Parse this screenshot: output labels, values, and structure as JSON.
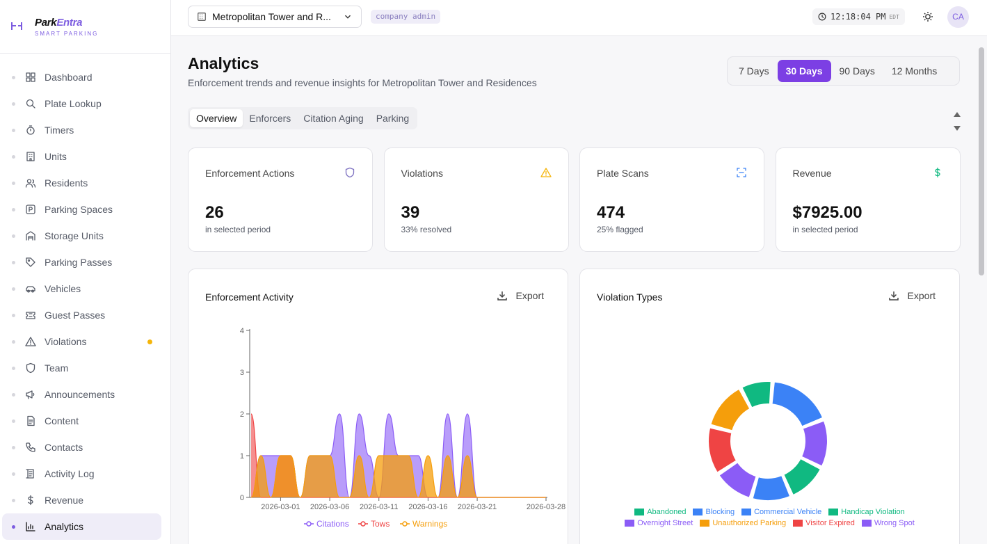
{
  "brand": {
    "name_part1": "Park",
    "name_part2": "Entra",
    "subtitle": "SMART PARKING"
  },
  "sidebar": {
    "items": [
      {
        "label": "Dashboard",
        "icon": "grid-icon"
      },
      {
        "label": "Plate Lookup",
        "icon": "search-icon"
      },
      {
        "label": "Timers",
        "icon": "timer-icon"
      },
      {
        "label": "Units",
        "icon": "building-icon"
      },
      {
        "label": "Residents",
        "icon": "users-icon"
      },
      {
        "label": "Parking Spaces",
        "icon": "parking-icon"
      },
      {
        "label": "Storage Units",
        "icon": "warehouse-icon"
      },
      {
        "label": "Parking Passes",
        "icon": "tag-icon"
      },
      {
        "label": "Vehicles",
        "icon": "car-icon"
      },
      {
        "label": "Guest Passes",
        "icon": "ticket-icon"
      },
      {
        "label": "Violations",
        "icon": "warning-icon"
      },
      {
        "label": "Team",
        "icon": "shield-icon"
      },
      {
        "label": "Announcements",
        "icon": "megaphone-icon"
      },
      {
        "label": "Content",
        "icon": "document-icon"
      },
      {
        "label": "Contacts",
        "icon": "phone-icon"
      },
      {
        "label": "Activity Log",
        "icon": "log-icon"
      },
      {
        "label": "Revenue",
        "icon": "dollar-icon"
      },
      {
        "label": "Analytics",
        "icon": "bar-chart-icon"
      }
    ],
    "active_index": 17,
    "alert_index": 10
  },
  "header": {
    "property": "Metropolitan Tower and R...",
    "role": "company admin",
    "time": "12:18:04 PM",
    "timezone": "EDT",
    "avatar_initials": "CA"
  },
  "page": {
    "title": "Analytics",
    "subtitle": "Enforcement trends and revenue insights for Metropolitan Tower and Residences",
    "ranges": [
      "7 Days",
      "30 Days",
      "90 Days",
      "12 Months"
    ],
    "active_range": 1,
    "tabs": [
      "Overview",
      "Enforcers",
      "Citation Aging",
      "Parking"
    ],
    "active_tab": 0
  },
  "stats": [
    {
      "title": "Enforcement Actions",
      "value": "26",
      "note": "in selected period",
      "icon": "shield-icon",
      "color": "#7c6fc0"
    },
    {
      "title": "Violations",
      "value": "39",
      "note": "33% resolved",
      "icon": "warning-icon",
      "color": "#f5b50a"
    },
    {
      "title": "Plate Scans",
      "value": "474",
      "note": "25% flagged",
      "icon": "scan-icon",
      "color": "#3b82f6"
    },
    {
      "title": "Revenue",
      "value": "$7925.00",
      "note": "in selected period",
      "icon": "dollar-icon",
      "color": "#10b981"
    }
  ],
  "export_label": "Export",
  "chart_data": [
    {
      "type": "area",
      "title": "Enforcement Activity",
      "x_ticks": [
        "2026-03-01",
        "2026-03-06",
        "2026-03-11",
        "2026-03-16",
        "2026-03-21",
        "2026-03-28"
      ],
      "ylim": [
        0,
        4
      ],
      "y_ticks": [
        "0",
        "1",
        "2",
        "3",
        "4"
      ],
      "x": [
        "2026-02-26",
        "2026-02-27",
        "2026-02-28",
        "2026-03-01",
        "2026-03-02",
        "2026-03-03",
        "2026-03-04",
        "2026-03-05",
        "2026-03-06",
        "2026-03-07",
        "2026-03-08",
        "2026-03-09",
        "2026-03-10",
        "2026-03-11",
        "2026-03-12",
        "2026-03-13",
        "2026-03-14",
        "2026-03-15",
        "2026-03-16",
        "2026-03-17",
        "2026-03-18",
        "2026-03-19",
        "2026-03-20",
        "2026-03-21",
        "2026-03-22",
        "2026-03-23",
        "2026-03-24",
        "2026-03-25",
        "2026-03-26",
        "2026-03-27",
        "2026-03-28"
      ],
      "legend_position": "bottom",
      "series": [
        {
          "name": "Citations",
          "color": "#8b5cf6",
          "values": [
            0,
            1,
            1,
            1,
            1,
            0,
            1,
            1,
            1,
            2,
            0,
            2,
            1,
            0,
            2,
            1,
            1,
            1,
            0,
            0,
            2,
            0,
            2,
            0,
            0,
            0,
            0,
            0,
            0,
            0,
            0
          ]
        },
        {
          "name": "Tows",
          "color": "#ef4444",
          "values": [
            2,
            0,
            0,
            1,
            1,
            0,
            0,
            0,
            0,
            0,
            0,
            0,
            0,
            0,
            0,
            0,
            0,
            0,
            0,
            0,
            0,
            0,
            0,
            0,
            0,
            0,
            0,
            0,
            0,
            0,
            0
          ]
        },
        {
          "name": "Warnings",
          "color": "#f59e0b",
          "values": [
            0,
            1,
            0,
            1,
            1,
            0,
            1,
            1,
            1,
            0,
            0,
            1,
            0,
            1,
            1,
            1,
            1,
            0,
            1,
            0,
            1,
            0,
            1,
            0,
            0,
            0,
            0,
            0,
            0,
            0,
            0
          ]
        }
      ]
    },
    {
      "type": "pie",
      "title": "Violation Types",
      "legend_position": "bottom",
      "slices": [
        {
          "name": "Abandoned",
          "value": 4,
          "color": "#10b981"
        },
        {
          "name": "Blocking",
          "value": 8,
          "color": "#3b82f6"
        },
        {
          "name": "Wrong Spot",
          "value": 6,
          "color": "#8b5cf6"
        },
        {
          "name": "Handicap Violation",
          "value": 5,
          "color": "#10b981"
        },
        {
          "name": "Commercial Vehicle",
          "value": 5,
          "color": "#3b82f6"
        },
        {
          "name": "Overnight Street",
          "value": 5,
          "color": "#8b5cf6"
        },
        {
          "name": "Visitor Expired",
          "value": 6,
          "color": "#ef4444"
        },
        {
          "name": "Unauthorized Parking",
          "value": 6,
          "color": "#f59e0b"
        }
      ],
      "legend_order": [
        "Abandoned",
        "Blocking",
        "Commercial Vehicle",
        "Handicap Violation",
        "Overnight Street",
        "Unauthorized Parking",
        "Visitor Expired",
        "Wrong Spot"
      ]
    }
  ]
}
